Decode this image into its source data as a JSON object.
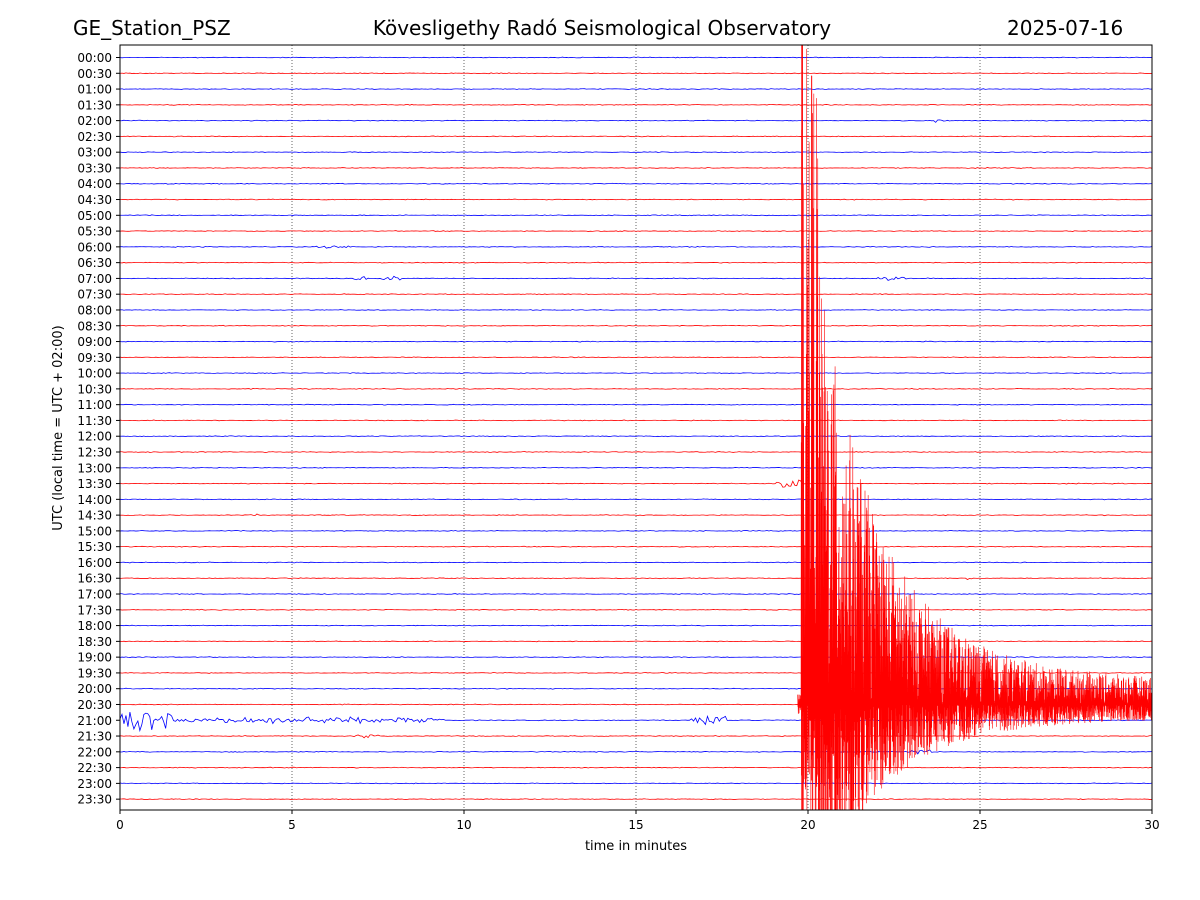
{
  "header": {
    "station": "GE_Station_PSZ",
    "observatory": "Kövesligethy Radó Seismological Observatory",
    "date": "2025-07-16"
  },
  "chart_data": {
    "type": "line",
    "title": "Kövesligethy Radó Seismological Observatory",
    "xlabel": "time in minutes",
    "ylabel": "UTC (local time = UTC + 02:00)",
    "xlim": [
      0,
      30
    ],
    "xticks": [
      "0",
      "5",
      "10",
      "15",
      "20",
      "25",
      "30"
    ],
    "rows": [
      "00:00",
      "00:30",
      "01:00",
      "01:30",
      "02:00",
      "02:30",
      "03:00",
      "03:30",
      "04:00",
      "04:30",
      "05:00",
      "05:30",
      "06:00",
      "06:30",
      "07:00",
      "07:30",
      "08:00",
      "08:30",
      "09:00",
      "09:30",
      "10:00",
      "10:30",
      "11:00",
      "11:30",
      "12:00",
      "12:30",
      "13:00",
      "13:30",
      "14:00",
      "14:30",
      "15:00",
      "15:30",
      "16:00",
      "16:30",
      "17:00",
      "17:30",
      "18:00",
      "18:30",
      "19:00",
      "19:30",
      "20:00",
      "20:30",
      "21:00",
      "21:30",
      "22:00",
      "22:30",
      "23:00",
      "23:30"
    ],
    "grid": "vertical dotted at 5-minute ticks",
    "colors": {
      "even_rows": "#0000ff",
      "odd_rows": "#ff0000"
    },
    "events": [
      {
        "row": "02:00",
        "start_min": 23.5,
        "end_min": 24.0,
        "amplitude": 0.15
      },
      {
        "row": "06:00",
        "start_min": 5.7,
        "end_min": 6.8,
        "amplitude": 0.15
      },
      {
        "row": "07:00",
        "start_min": 6.7,
        "end_min": 7.2,
        "amplitude": 0.2
      },
      {
        "row": "07:00",
        "start_min": 7.6,
        "end_min": 8.2,
        "amplitude": 0.25
      },
      {
        "row": "07:00",
        "start_min": 22.0,
        "end_min": 23.0,
        "amplitude": 0.2
      },
      {
        "row": "13:30",
        "start_min": 18.9,
        "end_min": 19.8,
        "amplitude": 0.5
      },
      {
        "row": "14:30",
        "start_min": 3.8,
        "end_min": 4.0,
        "amplitude": 0.15
      },
      {
        "row": "16:30",
        "start_min": 24.6,
        "end_min": 24.8,
        "amplitude": 0.2
      },
      {
        "row": "21:00",
        "start_min": 0.0,
        "end_min": 1.5,
        "amplitude": 1.2
      },
      {
        "row": "21:00",
        "start_min": 1.5,
        "end_min": 9.5,
        "amplitude": 0.35
      },
      {
        "row": "21:00",
        "start_min": 16.6,
        "end_min": 17.6,
        "amplitude": 0.6
      },
      {
        "row": "21:30",
        "start_min": 6.8,
        "end_min": 7.6,
        "amplitude": 0.2
      },
      {
        "row": "22:00",
        "start_min": 22.8,
        "end_min": 23.6,
        "amplitude": 0.25
      }
    ],
    "earthquake": {
      "row": "20:30",
      "onset_min": 19.8,
      "peak_top_row": "00:00",
      "coda_end_min": 30
    }
  }
}
